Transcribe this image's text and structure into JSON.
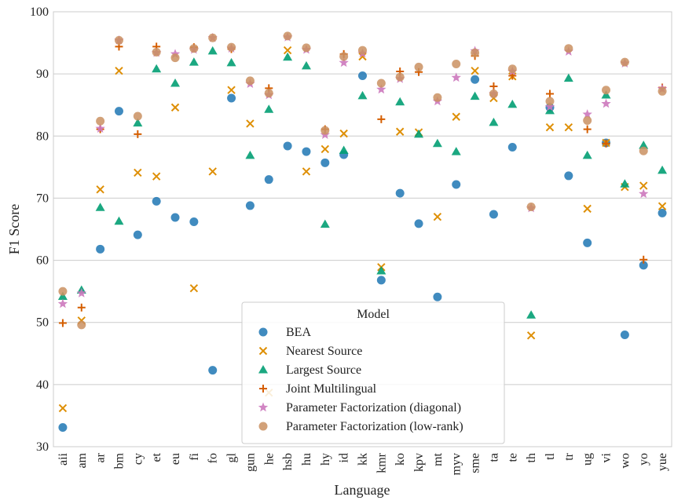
{
  "chart_data": {
    "type": "scatter",
    "xlabel": "Language",
    "ylabel": "F1 Score",
    "ylim": [
      30,
      100
    ],
    "yticks": [
      30,
      40,
      50,
      60,
      70,
      80,
      90,
      100
    ],
    "grid": true,
    "legend_title": "Model",
    "legend_position": "bottom-center",
    "categories": [
      "aii",
      "am",
      "ar",
      "bm",
      "cy",
      "et",
      "eu",
      "fi",
      "fo",
      "gl",
      "gun",
      "he",
      "hsb",
      "hu",
      "hy",
      "id",
      "kk",
      "kmr",
      "ko",
      "kpv",
      "mt",
      "myv",
      "sme",
      "ta",
      "te",
      "th",
      "tl",
      "tr",
      "ug",
      "vi",
      "wo",
      "yo",
      "yue"
    ],
    "series": [
      {
        "name": "BEA",
        "marker": "circle",
        "color": "#1f77b4",
        "values": [
          33.1,
          null,
          61.8,
          84.0,
          64.1,
          69.5,
          66.9,
          66.2,
          42.3,
          86.1,
          68.8,
          73.0,
          78.4,
          77.5,
          75.7,
          77.0,
          89.7,
          56.8,
          70.8,
          65.9,
          54.1,
          72.2,
          89.1,
          67.4,
          78.2,
          null,
          84.6,
          73.6,
          62.8,
          78.9,
          48.0,
          59.2,
          67.6
        ]
      },
      {
        "name": "Nearest Source",
        "marker": "x",
        "color": "#de8f05",
        "values": [
          36.2,
          50.3,
          71.4,
          90.5,
          74.1,
          73.5,
          84.6,
          55.5,
          74.3,
          87.4,
          82.0,
          38.7,
          93.8,
          74.3,
          77.9,
          80.4,
          92.8,
          58.9,
          80.7,
          80.6,
          67.0,
          83.1,
          90.5,
          86.1,
          89.6,
          47.9,
          81.4,
          81.4,
          68.3,
          78.9,
          71.8,
          72.0,
          68.7
        ]
      },
      {
        "name": "Largest Source",
        "marker": "triangle",
        "color": "#029e73",
        "values": [
          54.2,
          55.2,
          68.5,
          66.3,
          82.1,
          90.8,
          88.5,
          91.9,
          93.7,
          91.8,
          76.9,
          84.3,
          92.7,
          91.3,
          65.8,
          77.7,
          86.5,
          58.3,
          85.5,
          80.3,
          78.8,
          77.5,
          86.4,
          82.2,
          85.1,
          51.2,
          84.1,
          89.3,
          76.9,
          86.6,
          72.3,
          78.5,
          74.5
        ]
      },
      {
        "name": "Joint Multilingual",
        "marker": "plus",
        "color": "#d55e00",
        "values": [
          49.9,
          52.4,
          81.1,
          94.4,
          80.3,
          94.4,
          null,
          94.3,
          null,
          94.0,
          null,
          87.7,
          null,
          null,
          81.1,
          93.2,
          null,
          82.7,
          90.4,
          90.3,
          null,
          null,
          92.9,
          88.0,
          89.7,
          null,
          86.8,
          null,
          81.1,
          78.8,
          null,
          60.1,
          87.8
        ]
      },
      {
        "name": "Parameter Factorization (diagonal)",
        "marker": "star",
        "color": "#cc78bc",
        "values": [
          53.0,
          54.7,
          81.2,
          95.4,
          null,
          93.4,
          93.2,
          93.9,
          95.8,
          94.1,
          88.4,
          86.6,
          95.9,
          93.9,
          80.2,
          91.8,
          93.3,
          87.5,
          89.2,
          null,
          85.6,
          89.4,
          93.7,
          86.8,
          90.4,
          68.4,
          84.7,
          93.6,
          83.5,
          85.2,
          91.7,
          70.7,
          87.6
        ]
      },
      {
        "name": "Parameter Factorization (low-rank)",
        "marker": "circle",
        "color": "#ca9161",
        "values": [
          55.0,
          49.6,
          82.4,
          95.4,
          83.2,
          93.5,
          92.6,
          94.1,
          95.8,
          94.3,
          88.9,
          86.9,
          96.1,
          94.2,
          80.9,
          92.8,
          93.8,
          88.5,
          89.5,
          91.1,
          86.2,
          91.6,
          93.4,
          86.8,
          90.8,
          68.6,
          85.6,
          94.1,
          82.5,
          87.4,
          91.9,
          77.6,
          87.2
        ]
      }
    ]
  }
}
